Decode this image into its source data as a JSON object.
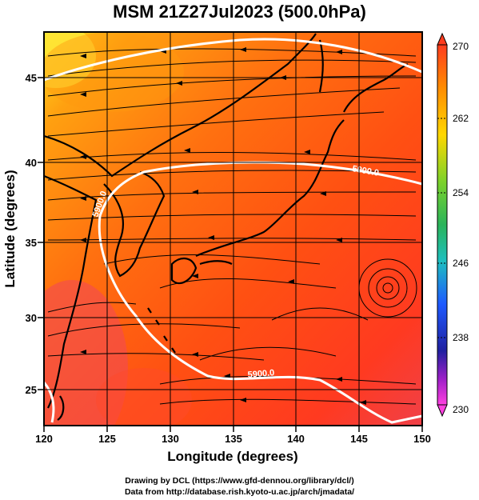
{
  "title": "MSM 21Z27Jul2023 (500.0hPa)",
  "map": {
    "lon_range": [
      120,
      150
    ],
    "lat_range": [
      22.5,
      48
    ],
    "x_ticks": [
      "120",
      "125",
      "130",
      "135",
      "140",
      "145",
      "150"
    ],
    "y_ticks": [
      "45",
      "40",
      "35",
      "30",
      "25"
    ],
    "x_axis_label": "Longitude (degrees)",
    "y_axis_label": "Latitude  (degrees)",
    "contour_labels": [
      "5900.0",
      "5900.0",
      "5900.0"
    ],
    "field_colors": [
      "#ffe020",
      "#ff8a10",
      "#ff6010",
      "#ff3a20",
      "#f04048"
    ]
  },
  "colorbar": {
    "labels": [
      "270",
      "262",
      "254",
      "246",
      "238",
      "230"
    ],
    "colors": [
      "#ff3c1e",
      "#ff8c00",
      "#ffd700",
      "#7cd22a",
      "#2ab45a",
      "#1ebfbf",
      "#1e5aff",
      "#2020a0",
      "#a020c8",
      "#ff40e0"
    ]
  },
  "footer": {
    "line1": "Drawing by DCL (https://www.gfd-dennou.org/library/dcl/)",
    "line2": "Data from http://database.rish.kyoto-u.ac.jp/arch/jmadata/"
  }
}
